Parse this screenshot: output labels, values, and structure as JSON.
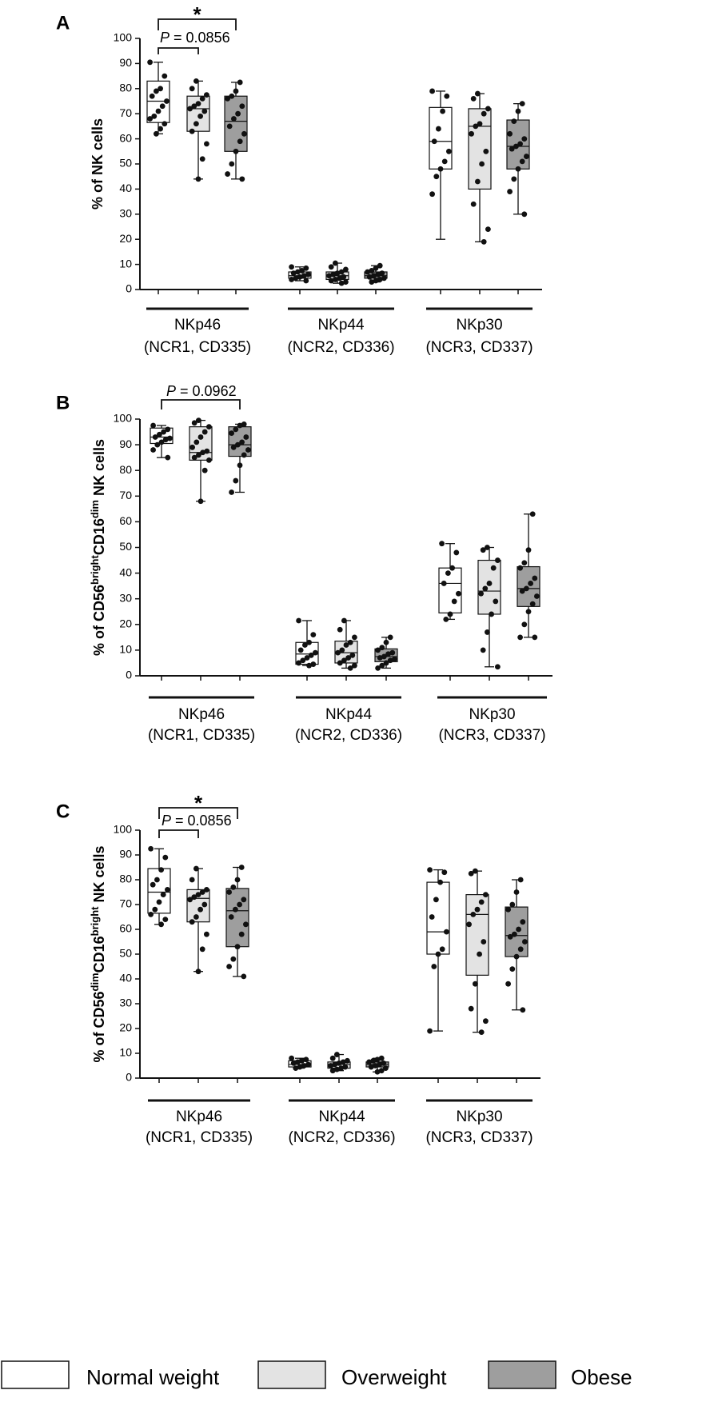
{
  "colors": {
    "normal_weight": "#ffffff",
    "overweight": "#e3e3e3",
    "obese": "#9e9e9e",
    "stroke": "#111111",
    "dot": "#111111"
  },
  "legend": [
    {
      "label": "Normal weight",
      "color_key": "normal_weight"
    },
    {
      "label": "Overweight",
      "color_key": "overweight"
    },
    {
      "label": "Obese",
      "color_key": "obese"
    }
  ],
  "chart_data": [
    {
      "type": "box",
      "panel": "A",
      "ylabel": "% of NK cells",
      "ylabel_sup": [],
      "ylim": [
        0,
        100
      ],
      "yticks": [
        "0",
        "10",
        "20",
        "30",
        "40",
        "50",
        "60",
        "70",
        "80",
        "90",
        "100"
      ],
      "groups": [
        {
          "label1": "NKp46",
          "label2": "(NCR1, CD335)"
        },
        {
          "label1": "NKp44",
          "label2": "(NCR2, CD336)"
        },
        {
          "label1": "NKp30",
          "label2": "(NCR3, CD337)"
        }
      ],
      "boxes": [
        {
          "group": 0,
          "series": "normal_weight",
          "min": 62,
          "q1": 66.5,
          "median": 75,
          "q3": 83,
          "max": 90.5,
          "points": [
            90.5,
            85,
            80,
            79,
            77,
            75,
            73,
            71,
            69,
            68,
            66,
            64,
            62
          ]
        },
        {
          "group": 0,
          "series": "overweight",
          "min": 44,
          "q1": 63,
          "median": 72,
          "q3": 77,
          "max": 83,
          "points": [
            83,
            80,
            77.5,
            76,
            74,
            73,
            72,
            71,
            69,
            66,
            63,
            58,
            52,
            44
          ]
        },
        {
          "group": 0,
          "series": "obese",
          "min": 44,
          "q1": 55,
          "median": 67,
          "q3": 77,
          "max": 82.5,
          "points": [
            82.5,
            79,
            77,
            76,
            73,
            70,
            68,
            65,
            62,
            59,
            55,
            50,
            46,
            44
          ]
        },
        {
          "group": 1,
          "series": "normal_weight",
          "min": 3.5,
          "q1": 4.5,
          "median": 5.5,
          "q3": 7,
          "max": 9,
          "points": [
            9,
            8.5,
            7.5,
            7,
            6.5,
            6,
            5.5,
            5,
            4.5,
            4,
            3.5
          ]
        },
        {
          "group": 1,
          "series": "overweight",
          "min": 2.5,
          "q1": 4,
          "median": 5.5,
          "q3": 7,
          "max": 10.5,
          "points": [
            10.5,
            9,
            8,
            7,
            6.5,
            6,
            5.5,
            5,
            4.5,
            4,
            3.5,
            3,
            2.5
          ]
        },
        {
          "group": 1,
          "series": "obese",
          "min": 3,
          "q1": 4.5,
          "median": 5.5,
          "q3": 7,
          "max": 9.5,
          "points": [
            9.5,
            8.5,
            7.5,
            7,
            6.5,
            6,
            5.5,
            5,
            4.5,
            4,
            3.5,
            3
          ]
        },
        {
          "group": 2,
          "series": "normal_weight",
          "min": 20,
          "q1": 48,
          "median": 59,
          "q3": 72.5,
          "max": 79,
          "points": [
            79,
            77,
            71,
            64,
            59,
            55,
            51,
            48,
            45,
            38
          ]
        },
        {
          "group": 2,
          "series": "overweight",
          "min": 19,
          "q1": 40,
          "median": 65,
          "q3": 72,
          "max": 78,
          "points": [
            78,
            76,
            72,
            70,
            66,
            65,
            62,
            55,
            50,
            43,
            34,
            24,
            19
          ]
        },
        {
          "group": 2,
          "series": "obese",
          "min": 30,
          "q1": 48,
          "median": 57,
          "q3": 67.5,
          "max": 74,
          "points": [
            74,
            71,
            67,
            62,
            60,
            58,
            57,
            56,
            53,
            51,
            48,
            44,
            39,
            30
          ]
        }
      ],
      "annotations": [
        {
          "text": "*",
          "kind": "star"
        },
        {
          "text": "P = 0.0856",
          "kind": "p_value"
        }
      ]
    },
    {
      "type": "box",
      "panel": "B",
      "ylabel": "% of CD56",
      "ylabel_sup": [
        "bright",
        "CD16",
        "dim",
        " NK cells"
      ],
      "ylim": [
        0,
        100
      ],
      "yticks": [
        "0",
        "10",
        "20",
        "30",
        "40",
        "50",
        "60",
        "70",
        "80",
        "90",
        "100"
      ],
      "groups": [
        {
          "label1": "NKp46",
          "label2": "(NCR1, CD335)"
        },
        {
          "label1": "NKp44",
          "label2": "(NCR2, CD336)"
        },
        {
          "label1": "NKp30",
          "label2": "(NCR3, CD337)"
        }
      ],
      "boxes": [
        {
          "group": 0,
          "series": "normal_weight",
          "min": 85,
          "q1": 90.5,
          "median": 93,
          "q3": 96.5,
          "max": 97.5,
          "points": [
            97.5,
            96,
            95,
            94,
            93,
            92.5,
            92,
            91,
            90,
            88,
            85
          ]
        },
        {
          "group": 0,
          "series": "overweight",
          "min": 68,
          "q1": 84,
          "median": 87,
          "q3": 97,
          "max": 99.5,
          "points": [
            99.5,
            98.5,
            97,
            95,
            93,
            91,
            89,
            87.5,
            87,
            86,
            85,
            84,
            80,
            68
          ]
        },
        {
          "group": 0,
          "series": "obese",
          "min": 71.5,
          "q1": 85.5,
          "median": 90,
          "q3": 97,
          "max": 98,
          "points": [
            98,
            97.5,
            96,
            94.5,
            93,
            91,
            90,
            89,
            88,
            86,
            82,
            76,
            71.5
          ]
        },
        {
          "group": 1,
          "series": "normal_weight",
          "min": 4,
          "q1": 4.5,
          "median": 8.5,
          "q3": 13,
          "max": 21.5,
          "points": [
            21.5,
            16,
            13,
            12,
            10,
            9,
            8,
            7,
            6,
            5,
            4.5,
            4
          ]
        },
        {
          "group": 1,
          "series": "overweight",
          "min": 3,
          "q1": 5,
          "median": 9,
          "q3": 13.5,
          "max": 21.5,
          "points": [
            21.5,
            18,
            15,
            13,
            12,
            10,
            9,
            8,
            7,
            6,
            5,
            4,
            3
          ]
        },
        {
          "group": 1,
          "series": "obese",
          "min": 3,
          "q1": 5.5,
          "median": 7.5,
          "q3": 10.5,
          "max": 15,
          "points": [
            15,
            13,
            11,
            10,
            9,
            8.5,
            7.5,
            7,
            6.5,
            6,
            5,
            4,
            3
          ]
        },
        {
          "group": 2,
          "series": "normal_weight",
          "min": 22,
          "q1": 24.5,
          "median": 36,
          "q3": 42,
          "max": 51.5,
          "points": [
            51.5,
            48,
            42,
            40,
            36,
            32,
            29,
            24,
            22
          ]
        },
        {
          "group": 2,
          "series": "overweight",
          "min": 3.5,
          "q1": 24,
          "median": 33,
          "q3": 45,
          "max": 50,
          "points": [
            50,
            49,
            45,
            42,
            36,
            34,
            32,
            29,
            24,
            17,
            10,
            3.5
          ]
        },
        {
          "group": 2,
          "series": "obese",
          "min": 15,
          "q1": 27,
          "median": 34,
          "q3": 42.5,
          "max": 63,
          "points": [
            63,
            49,
            44,
            42,
            38,
            36,
            34,
            33,
            31,
            28,
            25,
            20,
            15,
            15
          ]
        }
      ],
      "annotations": [
        {
          "text": "P = 0.0962",
          "kind": "p_value"
        }
      ]
    },
    {
      "type": "box",
      "panel": "C",
      "ylabel": "% of CD56",
      "ylabel_sup": [
        "dim",
        "CD16",
        "bright",
        " NK cells"
      ],
      "ylim": [
        0,
        100
      ],
      "yticks": [
        "0",
        "10",
        "20",
        "30",
        "40",
        "50",
        "60",
        "70",
        "80",
        "90",
        "100"
      ],
      "groups": [
        {
          "label1": "NKp46",
          "label2": "(NCR1, CD335)"
        },
        {
          "label1": "NKp44",
          "label2": "(NCR2, CD336)"
        },
        {
          "label1": "NKp30",
          "label2": "(NCR3, CD337)"
        }
      ],
      "boxes": [
        {
          "group": 0,
          "series": "normal_weight",
          "min": 62,
          "q1": 66.5,
          "median": 75,
          "q3": 84.5,
          "max": 92.5,
          "points": [
            92.5,
            89,
            84,
            80,
            78,
            76,
            74,
            71,
            68,
            66,
            64,
            62
          ]
        },
        {
          "group": 0,
          "series": "overweight",
          "min": 43,
          "q1": 63,
          "median": 72.5,
          "q3": 76,
          "max": 84.5,
          "points": [
            84.5,
            80,
            76,
            75,
            74,
            73,
            72,
            70,
            68,
            65,
            63,
            58,
            52,
            43
          ]
        },
        {
          "group": 0,
          "series": "obese",
          "min": 41,
          "q1": 53,
          "median": 67.5,
          "q3": 76.5,
          "max": 85,
          "points": [
            85,
            80,
            77,
            75,
            72,
            70,
            68,
            65,
            62,
            58,
            53,
            48,
            45,
            41
          ]
        },
        {
          "group": 1,
          "series": "normal_weight",
          "min": 4,
          "q1": 4.5,
          "median": 5.5,
          "q3": 7,
          "max": 8,
          "points": [
            8,
            7.5,
            7,
            6.5,
            6,
            5.5,
            5,
            4.5,
            4
          ]
        },
        {
          "group": 1,
          "series": "overweight",
          "min": 3,
          "q1": 4,
          "median": 5.5,
          "q3": 6.5,
          "max": 9.5,
          "points": [
            9.5,
            8,
            7,
            6.5,
            6,
            5.5,
            5,
            4.5,
            4,
            3.5,
            3
          ]
        },
        {
          "group": 1,
          "series": "obese",
          "min": 2.5,
          "q1": 4.5,
          "median": 5.5,
          "q3": 6.5,
          "max": 8,
          "points": [
            8,
            7.5,
            7,
            6.5,
            6,
            5.5,
            5,
            4.5,
            4,
            3,
            2.5
          ]
        },
        {
          "group": 2,
          "series": "normal_weight",
          "min": 19,
          "q1": 50,
          "median": 59,
          "q3": 79,
          "max": 84,
          "points": [
            84,
            83,
            79,
            72,
            65,
            59,
            52,
            50,
            45,
            19
          ]
        },
        {
          "group": 2,
          "series": "overweight",
          "min": 18.5,
          "q1": 41.5,
          "median": 66,
          "q3": 74,
          "max": 83.5,
          "points": [
            83.5,
            82.5,
            74,
            71,
            68,
            66,
            62,
            55,
            50,
            38,
            28,
            23,
            18.5
          ]
        },
        {
          "group": 2,
          "series": "obese",
          "min": 27.5,
          "q1": 49,
          "median": 57.5,
          "q3": 69,
          "max": 80,
          "points": [
            80,
            75,
            70,
            68,
            63,
            60,
            58,
            57,
            55,
            52,
            49,
            44,
            38,
            27.5
          ]
        }
      ],
      "annotations": [
        {
          "text": "*",
          "kind": "star"
        },
        {
          "text": "P = 0.0856",
          "kind": "p_value"
        }
      ]
    }
  ]
}
